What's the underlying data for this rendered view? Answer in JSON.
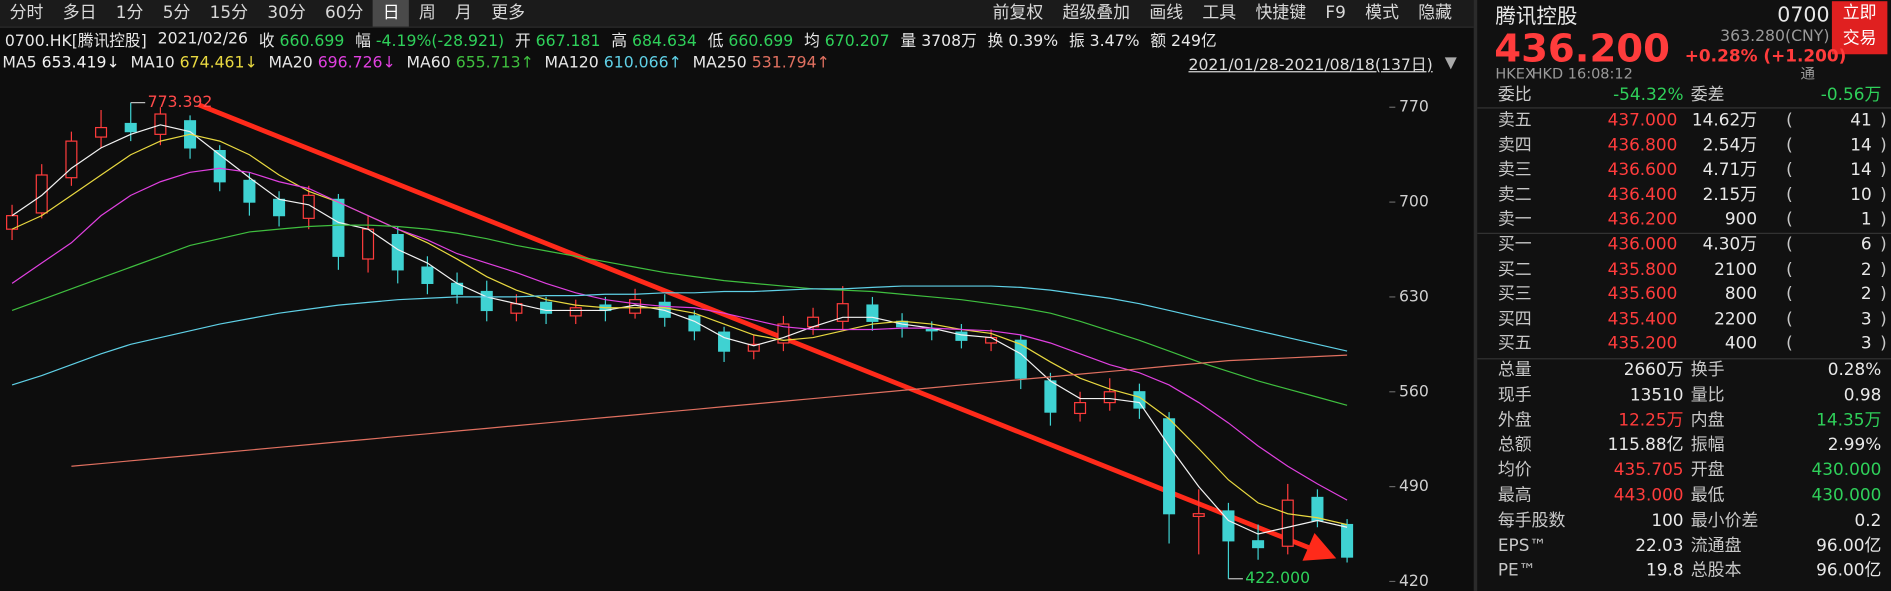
{
  "toolbar": {
    "left": [
      "分时",
      "多日",
      "1分",
      "5分",
      "15分",
      "30分",
      "60分",
      "日",
      "周",
      "月",
      "更多"
    ],
    "active_index": 7,
    "right": [
      "前复权",
      "超级叠加",
      "画线",
      "工具",
      "快捷键",
      "F9",
      "模式",
      "隐藏"
    ]
  },
  "info": {
    "symbol": "0700.HK[腾讯控股]",
    "date": "2021/02/26",
    "items": [
      [
        "收",
        "660.699"
      ],
      [
        "幅",
        "-4.19%(-28.921)"
      ],
      [
        "开",
        "667.181"
      ],
      [
        "高",
        "684.634"
      ],
      [
        "低",
        "660.699"
      ],
      [
        "均",
        "670.207"
      ],
      [
        "量",
        "3708万"
      ],
      [
        "换",
        "0.39%"
      ],
      [
        "振",
        "3.47%"
      ],
      [
        "额",
        "249亿"
      ]
    ],
    "range": "2021/01/28-2021/08/18(137日)"
  },
  "chart_data": {
    "type": "candlestick",
    "up_color": "#ff3c3c",
    "down_color": "#3fd2d2",
    "candles": {
      "open": [
        680,
        692,
        718,
        748,
        758,
        750,
        760,
        738,
        716,
        702,
        688,
        702,
        658,
        676,
        652,
        640,
        634,
        618,
        626,
        616,
        624,
        618,
        626,
        616,
        604,
        590,
        596,
        608,
        612,
        624,
        612,
        606,
        604,
        596,
        598,
        568,
        544,
        552,
        560,
        540,
        468,
        472,
        450,
        446,
        482,
        462
      ],
      "high": [
        698,
        728,
        752,
        768,
        773.392,
        770,
        764,
        742,
        722,
        708,
        712,
        706,
        690,
        682,
        660,
        648,
        642,
        632,
        630,
        628,
        630,
        636,
        632,
        620,
        608,
        602,
        616,
        622,
        638,
        630,
        618,
        612,
        610,
        606,
        602,
        574,
        560,
        570,
        566,
        545,
        488,
        478,
        462,
        492,
        488,
        466
      ],
      "low": [
        672,
        688,
        712,
        740,
        745,
        742,
        732,
        708,
        690,
        682,
        680,
        650,
        648,
        640,
        632,
        625,
        612,
        612,
        610,
        610,
        612,
        614,
        608,
        598,
        582,
        584,
        590,
        602,
        606,
        605,
        600,
        598,
        592,
        590,
        562,
        535,
        538,
        546,
        540,
        448,
        440,
        422,
        436,
        440,
        460,
        434
      ],
      "close": [
        690,
        720,
        745,
        755,
        752,
        765,
        740,
        715,
        700,
        690,
        705,
        660,
        680,
        650,
        640,
        632,
        620,
        625,
        618,
        622,
        620,
        628,
        615,
        605,
        590,
        595,
        610,
        615,
        625,
        612,
        608,
        605,
        598,
        600,
        570,
        545,
        552,
        560,
        548,
        470,
        470,
        450,
        445,
        480,
        465,
        438
      ]
    },
    "max_label": 773.392,
    "min_label": {
      "value": 422,
      "label": "422.000"
    },
    "series": [
      {
        "name": "MA5",
        "color": "#f2f2f2",
        "last_label": "653.419↓",
        "values": [
          690,
          705,
          725,
          740,
          750,
          757,
          752,
          735,
          718,
          702,
          698,
          685,
          680,
          665,
          655,
          640,
          630,
          625,
          620,
          620,
          620,
          624,
          620,
          612,
          600,
          594,
          600,
          608,
          615,
          615,
          610,
          607,
          602,
          600,
          588,
          568,
          555,
          555,
          552,
          520,
          490,
          465,
          455,
          460,
          465,
          460
        ]
      },
      {
        "name": "MA10",
        "color": "#e8d840",
        "last_label": "674.461↓",
        "values": [
          680,
          690,
          705,
          720,
          735,
          745,
          750,
          745,
          735,
          720,
          708,
          700,
          690,
          680,
          670,
          658,
          645,
          635,
          628,
          624,
          622,
          622,
          622,
          618,
          610,
          602,
          598,
          600,
          605,
          610,
          612,
          610,
          606,
          603,
          595,
          582,
          570,
          562,
          556,
          540,
          518,
          495,
          478,
          470,
          467,
          462
        ]
      },
      {
        "name": "MA20",
        "color": "#e040e0",
        "last_label": "696.726↓",
        "values": [
          640,
          655,
          670,
          690,
          705,
          715,
          722,
          725,
          722,
          715,
          710,
          700,
          690,
          680,
          672,
          662,
          655,
          648,
          640,
          633,
          628,
          625,
          623,
          622,
          618,
          613,
          608,
          606,
          606,
          606,
          607,
          607,
          606,
          605,
          602,
          596,
          588,
          580,
          574,
          565,
          552,
          537,
          520,
          505,
          492,
          480
        ]
      },
      {
        "name": "MA60",
        "color": "#3fbf3f",
        "last_label": "655.713↑",
        "values": [
          620,
          628,
          636,
          644,
          652,
          660,
          668,
          673,
          678,
          680,
          682,
          683,
          683,
          682,
          680,
          677,
          673,
          668,
          664,
          660,
          656,
          652,
          648,
          645,
          642,
          640,
          638,
          636,
          635,
          634,
          632,
          630,
          628,
          625,
          622,
          618,
          612,
          605,
          598,
          590,
          582,
          575,
          568,
          562,
          556,
          550
        ]
      },
      {
        "name": "MA120",
        "color": "#5fd0e6",
        "last_label": "610.066↑",
        "values": [
          565,
          572,
          580,
          588,
          595,
          600,
          605,
          610,
          614,
          618,
          621,
          624,
          626,
          628,
          629,
          630,
          630,
          630,
          631,
          631,
          632,
          632,
          633,
          633,
          634,
          634,
          635,
          636,
          636,
          637,
          638,
          638,
          638,
          638,
          637,
          635,
          632,
          629,
          625,
          620,
          615,
          610,
          605,
          600,
          595,
          590
        ]
      },
      {
        "name": "MA250",
        "color": "#e07060",
        "last_label": "531.794↑",
        "values": [
          null,
          null,
          505,
          507,
          509,
          511,
          513,
          515,
          517,
          519,
          521,
          523,
          525,
          527,
          529,
          531,
          533,
          535,
          537,
          539,
          541,
          543,
          545,
          547,
          549,
          551,
          553,
          555,
          557,
          559,
          561,
          563,
          565,
          567,
          569,
          571,
          573,
          575,
          577,
          579,
          581,
          583,
          584,
          585,
          586,
          587
        ]
      }
    ],
    "ylim": [
      413,
      791.3
    ],
    "yticks": [
      420,
      490,
      560,
      630,
      700,
      770
    ]
  },
  "quote": {
    "name": "腾讯控股",
    "code": "0700",
    "trade_button": [
      "立即",
      "交易"
    ],
    "price": "436.200",
    "price_cny": "363.280(CNY)",
    "change": "+0.28% (+1.200)",
    "exchange": "HKEX",
    "currency": "HKD",
    "time": "16:08:12",
    "flag": "通",
    "ratio": [
      "委比",
      "-54.32%",
      "委差",
      "-0.56万"
    ],
    "asks": [
      [
        "卖五",
        "437.000",
        "14.62万",
        "41"
      ],
      [
        "卖四",
        "436.800",
        "2.54万",
        "14"
      ],
      [
        "卖三",
        "436.600",
        "4.71万",
        "14"
      ],
      [
        "卖二",
        "436.400",
        "2.15万",
        "10"
      ],
      [
        "卖一",
        "436.200",
        "900",
        "1"
      ]
    ],
    "bids": [
      [
        "买一",
        "436.000",
        "4.30万",
        "6"
      ],
      [
        "买二",
        "435.800",
        "2100",
        "2"
      ],
      [
        "买三",
        "435.600",
        "800",
        "2"
      ],
      [
        "买四",
        "435.400",
        "2200",
        "3"
      ],
      [
        "买五",
        "435.200",
        "400",
        "3"
      ]
    ],
    "stats": [
      [
        "总量",
        "2660万",
        "换手",
        "0.28%"
      ],
      [
        "现手",
        "13510",
        "量比",
        "0.98"
      ],
      [
        "外盘",
        "12.25万",
        "内盘",
        "14.35万"
      ],
      [
        "总额",
        "115.88亿",
        "振幅",
        "2.99%"
      ],
      [
        "均价",
        "435.705",
        "开盘",
        "430.000"
      ],
      [
        "最高",
        "443.000",
        "最低",
        "430.000"
      ],
      [
        "每手股数",
        "100",
        "最小价差",
        "0.2"
      ],
      [
        "EPS™",
        "22.03",
        "流通盘",
        "96.00亿"
      ],
      [
        "PE™",
        "19.8",
        "总股本",
        "96.00亿"
      ]
    ]
  }
}
